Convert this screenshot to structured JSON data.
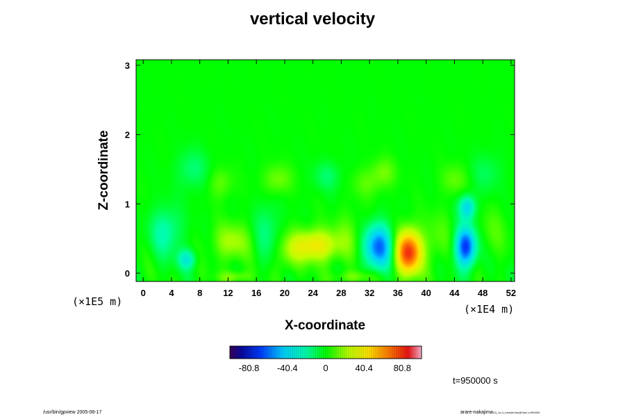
{
  "chart_data": {
    "type": "heatmap",
    "title": "vertical velocity",
    "xlabel": "X-coordinate",
    "ylabel": "Z-coordinate",
    "x_scale_note": "(×1E4 m)",
    "y_scale_note": "(×1E5 m)",
    "xlim": [
      -1,
      52.5
    ],
    "ylim": [
      -0.12,
      3.08
    ],
    "x_ticks": [
      0,
      4,
      8,
      12,
      16,
      20,
      24,
      28,
      32,
      36,
      40,
      44,
      48,
      52
    ],
    "y_ticks": [
      0,
      1,
      2,
      3
    ],
    "colorbar": {
      "range": [
        -101,
        101
      ],
      "ticks": [
        -80.8,
        -40.4,
        0,
        40.4,
        80.8
      ],
      "tick_labels": [
        "-80.8",
        "-40.4",
        "0",
        "40.4",
        "80.8"
      ]
    },
    "field_features": [
      {
        "x": 37.5,
        "z": 0.3,
        "sx": 1.3,
        "sz": 0.22,
        "value": 82
      },
      {
        "x": 24.2,
        "z": 0.4,
        "sx": 2.4,
        "sz": 0.16,
        "value": 42
      },
      {
        "x": 12.5,
        "z": 0.45,
        "sx": 1.8,
        "sz": 0.18,
        "value": 22
      },
      {
        "x": 33.3,
        "z": 0.38,
        "sx": 1.4,
        "sz": 0.22,
        "value": -62
      },
      {
        "x": 45.6,
        "z": 0.38,
        "sx": 1.0,
        "sz": 0.2,
        "value": -72
      },
      {
        "x": 6.2,
        "z": 0.2,
        "sx": 0.9,
        "sz": 0.1,
        "value": -30
      },
      {
        "x": 3.2,
        "z": 0.6,
        "sx": 1.5,
        "sz": 0.25,
        "value": -22
      },
      {
        "x": 17.5,
        "z": 0.6,
        "sx": 1.2,
        "sz": 0.3,
        "value": -15
      },
      {
        "x": 20.5,
        "z": 0.25,
        "sx": 1.2,
        "sz": 0.18,
        "value": 12
      },
      {
        "x": 29.0,
        "z": 0.55,
        "sx": 1.4,
        "sz": 0.25,
        "value": 10
      },
      {
        "x": 41.5,
        "z": 0.5,
        "sx": 1.4,
        "sz": 0.25,
        "value": 10
      },
      {
        "x": 49.5,
        "z": 0.6,
        "sx": 1.5,
        "sz": 0.25,
        "value": 8
      },
      {
        "x": 11.0,
        "z": 1.3,
        "sx": 1.2,
        "sz": 0.15,
        "value": 12
      },
      {
        "x": 7.0,
        "z": 1.5,
        "sx": 1.5,
        "sz": 0.2,
        "value": -14
      },
      {
        "x": 19.0,
        "z": 1.35,
        "sx": 1.4,
        "sz": 0.15,
        "value": 15
      },
      {
        "x": 26.0,
        "z": 1.4,
        "sx": 1.4,
        "sz": 0.15,
        "value": -12
      },
      {
        "x": 31.5,
        "z": 1.3,
        "sx": 1.4,
        "sz": 0.15,
        "value": 10
      },
      {
        "x": 34.0,
        "z": 1.45,
        "sx": 1.2,
        "sz": 0.15,
        "value": 14
      },
      {
        "x": 45.8,
        "z": 0.95,
        "sx": 0.8,
        "sz": 0.12,
        "value": -40
      },
      {
        "x": 44.0,
        "z": 1.35,
        "sx": 1.3,
        "sz": 0.15,
        "value": 12
      },
      {
        "x": 48.5,
        "z": 1.45,
        "sx": 1.5,
        "sz": 0.2,
        "value": -10
      },
      {
        "x": 13.0,
        "z": -0.05,
        "sx": 1.5,
        "sz": 0.06,
        "value": 18
      },
      {
        "x": 30.0,
        "z": -0.05,
        "sx": 2.0,
        "sz": 0.06,
        "value": 15
      }
    ]
  },
  "time_label": "t=950000 s",
  "footer": {
    "left": "/usr/bin/gpview 2005-08-17",
    "right_main": "arare-nakajima",
    "right_small": "D3_1e-4_Kessler4no@Var2,t=950000"
  }
}
